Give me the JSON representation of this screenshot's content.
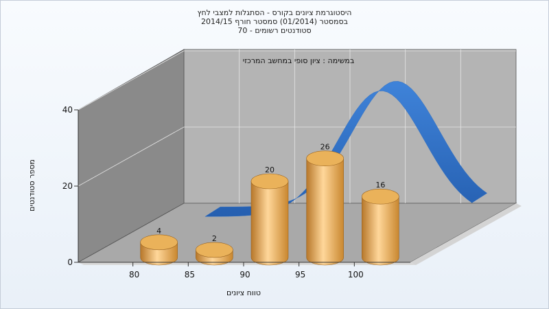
{
  "title_lines": [
    "היסטוגרמת ציונים בקורס - הסתגלות למצבי לחץ",
    "בסמסטר  (01/2014)  סמסטר חורף 2014/15",
    "סטודנטים רשומים - 70"
  ],
  "colors": {
    "back_wall": "#b4b4b4",
    "left_wall": "#8a8a8a",
    "floor": "#a9a9a9",
    "bar": "#e2a443",
    "curve": "#2f6fc4"
  },
  "chart_data": {
    "type": "bar",
    "title": "היסטוגרמת ציונים בקורס - הסתגלות למצבי לחץ",
    "subtitle": "במשימה : ציון סופי במחשב המרכזי",
    "xlabel": "טווח ציונים",
    "ylabel": "מספר סטודנטים",
    "ylim": [
      0,
      40
    ],
    "yticks": [
      0,
      20,
      40
    ],
    "xticks": [
      80,
      85,
      90,
      95,
      100
    ],
    "bars": [
      {
        "x": 80,
        "value": 4
      },
      {
        "x": 85,
        "value": 2
      },
      {
        "x": 90,
        "value": 20
      },
      {
        "x": 95,
        "value": 26
      },
      {
        "x": 100,
        "value": 16
      }
    ],
    "curve": "distribution-curve",
    "grid": true,
    "legend": "none"
  }
}
